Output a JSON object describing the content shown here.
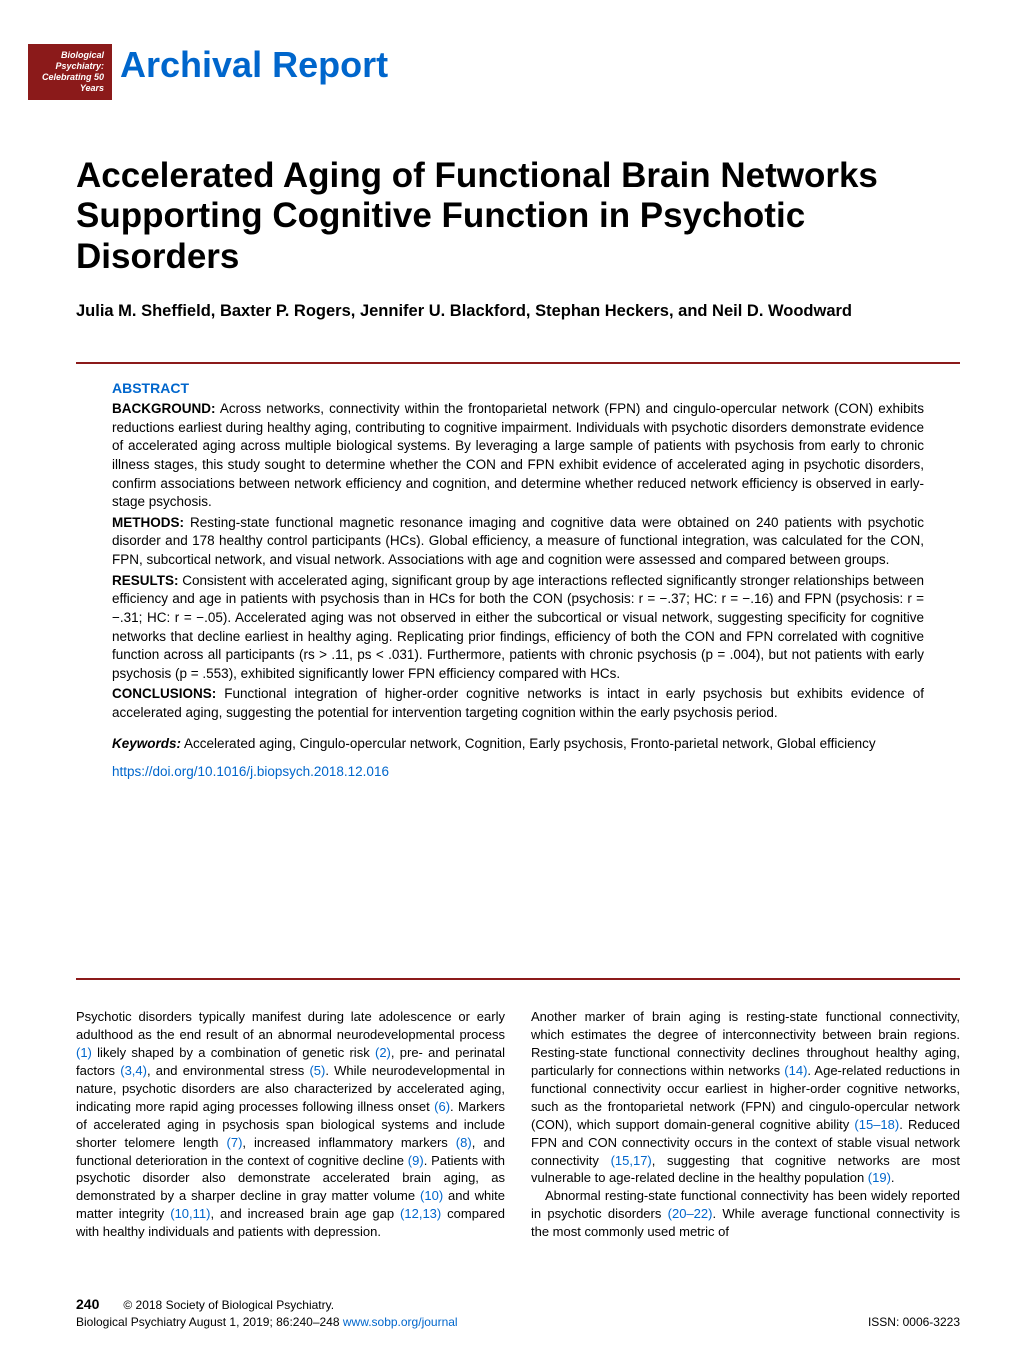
{
  "badge": {
    "text": "Biological Psychiatry: Celebrating 50 Years",
    "bg_color": "#8b1a1a",
    "text_color": "#ffffff"
  },
  "section_label": "Archival Report",
  "section_label_color": "#0066cc",
  "title": "Accelerated Aging of Functional Brain Networks Supporting Cognitive Function in Psychotic Disorders",
  "authors": "Julia M. Sheffield, Baxter P. Rogers, Jennifer U. Blackford, Stephan Heckers, and Neil D. Woodward",
  "divider_color": "#8b1a1a",
  "abstract": {
    "heading": "ABSTRACT",
    "background": {
      "label": "BACKGROUND:",
      "text": "Across networks, connectivity within the frontoparietal network (FPN) and cingulo-opercular network (CON) exhibits reductions earliest during healthy aging, contributing to cognitive impairment. Individuals with psychotic disorders demonstrate evidence of accelerated aging across multiple biological systems. By leveraging a large sample of patients with psychosis from early to chronic illness stages, this study sought to determine whether the CON and FPN exhibit evidence of accelerated aging in psychotic disorders, confirm associations between network efficiency and cognition, and determine whether reduced network efficiency is observed in early-stage psychosis."
    },
    "methods": {
      "label": "METHODS:",
      "text": "Resting-state functional magnetic resonance imaging and cognitive data were obtained on 240 patients with psychotic disorder and 178 healthy control participants (HCs). Global efficiency, a measure of functional integration, was calculated for the CON, FPN, subcortical network, and visual network. Associations with age and cognition were assessed and compared between groups."
    },
    "results": {
      "label": "RESULTS:",
      "text": "Consistent with accelerated aging, significant group by age interactions reflected significantly stronger relationships between efficiency and age in patients with psychosis than in HCs for both the CON (psychosis: r = −.37; HC: r = −.16) and FPN (psychosis: r = −.31; HC: r = −.05). Accelerated aging was not observed in either the subcortical or visual network, suggesting specificity for cognitive networks that decline earliest in healthy aging. Replicating prior findings, efficiency of both the CON and FPN correlated with cognitive function across all participants (rs > .11, ps < .031). Furthermore, patients with chronic psychosis (p = .004), but not patients with early psychosis (p = .553), exhibited significantly lower FPN efficiency compared with HCs."
    },
    "conclusions": {
      "label": "CONCLUSIONS:",
      "text": "Functional integration of higher-order cognitive networks is intact in early psychosis but exhibits evidence of accelerated aging, suggesting the potential for intervention targeting cognition within the early psychosis period."
    },
    "keywords": {
      "label": "Keywords:",
      "text": "Accelerated aging, Cingulo-opercular network, Cognition, Early psychosis, Fronto-parietal network, Global efficiency"
    },
    "doi": "https://doi.org/10.1016/j.biopsych.2018.12.016"
  },
  "body": {
    "col1": {
      "p1_pre": "Psychotic disorders typically manifest during late adolescence or early adulthood as the end result of an abnormal neurodevelopmental process ",
      "r1": "(1)",
      "p1_mid1": " likely shaped by a combination of genetic risk ",
      "r2": "(2)",
      "p1_mid2": ", pre- and perinatal factors ",
      "r34": "(3,4)",
      "p1_mid3": ", and environmental stress ",
      "r5": "(5)",
      "p1_mid4": ". While neurodevelopmental in nature, psychotic disorders are also characterized by accelerated aging, indicating more rapid aging processes following illness onset ",
      "r6": "(6)",
      "p1_mid5": ". Markers of accelerated aging in psychosis span biological systems and include shorter telomere length ",
      "r7": "(7)",
      "p1_mid6": ", increased inflammatory markers ",
      "r8": "(8)",
      "p1_mid7": ", and functional deterioration in the context of cognitive decline ",
      "r9": "(9)",
      "p1_mid8": ". Patients with psychotic disorder also demonstrate accelerated brain aging, as demonstrated by a sharper decline in gray matter volume ",
      "r10": "(10)",
      "p1_mid9": " and white matter integrity ",
      "r1011": "(10,11)",
      "p1_mid10": ", and increased brain age gap ",
      "r1213": "(12,13)",
      "p1_end": " compared with healthy individuals and patients with depression."
    },
    "col2": {
      "p1_pre": "Another marker of brain aging is resting-state functional connectivity, which estimates the degree of interconnectivity between brain regions. Resting-state functional connectivity declines throughout healthy aging, particularly for connections within networks ",
      "r14": "(14)",
      "p1_mid1": ". Age-related reductions in functional connectivity occur earliest in higher-order cognitive networks, such as the frontoparietal network (FPN) and cingulo-opercular network (CON), which support domain-general cognitive ability ",
      "r1518": "(15–18)",
      "p1_mid2": ". Reduced FPN and CON connectivity occurs in the context of stable visual network connectivity ",
      "r1517": "(15,17)",
      "p1_mid3": ", suggesting that cognitive networks are most vulnerable to age-related decline in the healthy population ",
      "r19": "(19)",
      "p1_end": ".",
      "p2_pre": "Abnormal resting-state functional connectivity has been widely reported in psychotic disorders ",
      "r2022": "(20–22)",
      "p2_end": ". While average functional connectivity is the most commonly used metric of"
    }
  },
  "footer": {
    "page_number": "240",
    "copyright": "© 2018 Society of Biological Psychiatry.",
    "citation": "Biological Psychiatry August 1, 2019; 86:240–248 ",
    "url": "www.sobp.org/journal",
    "issn": "ISSN: 0006-3223"
  },
  "link_color": "#0066cc"
}
